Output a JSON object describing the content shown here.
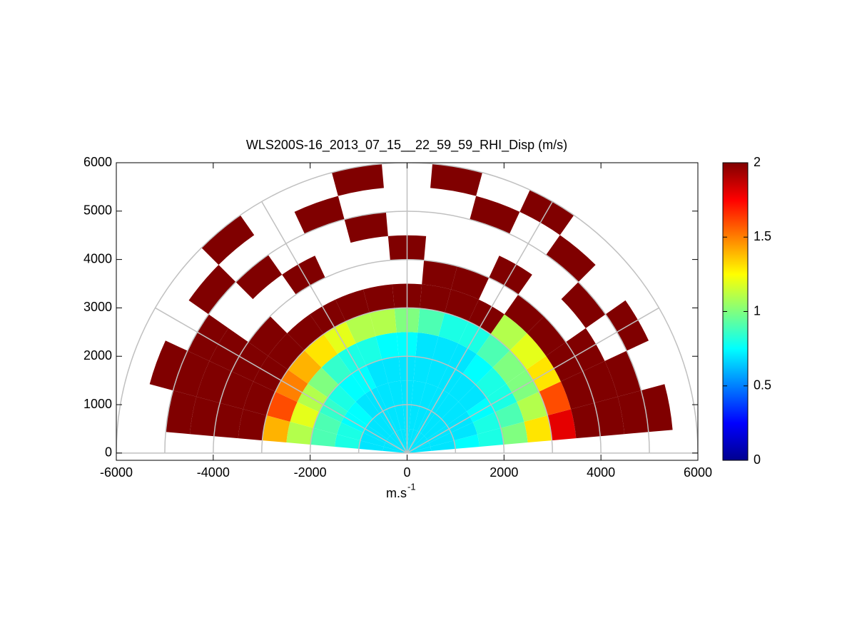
{
  "chart_data": {
    "type": "polar-heatmap",
    "title": "WLS200S-16_2013_07_15__22_59_59_RHI_Disp (m/s)",
    "xlabel": {
      "base": "m.s",
      "sup": "-1"
    },
    "xlim": [
      -6000,
      6000
    ],
    "ylim": [
      -150,
      6000
    ],
    "xticks": [
      -6000,
      -4000,
      -2000,
      0,
      2000,
      4000,
      6000
    ],
    "yticks": [
      0,
      1000,
      2000,
      3000,
      4000,
      5000,
      6000
    ],
    "rgrid": [
      1000,
      2000,
      3000,
      4000,
      5000,
      6000
    ],
    "thetagrid": [
      0,
      30,
      60,
      90,
      120,
      150,
      180
    ],
    "colormap": "jet",
    "clim": [
      0,
      2
    ],
    "cticks": [
      0,
      0.5,
      1,
      1.5,
      2
    ],
    "theta_edges": [
      5,
      15,
      25,
      35,
      45,
      55,
      65,
      75,
      85,
      95,
      105,
      115,
      125,
      135,
      145,
      155,
      165,
      175
    ],
    "r_edges": [
      0,
      500,
      1000,
      1500,
      2000,
      2500,
      3000,
      3500,
      4000,
      4500,
      5000,
      5500,
      6000
    ],
    "values": [
      [
        0.7,
        0.7,
        0.75,
        0.8,
        1.0,
        1.3,
        1.8,
        2,
        2,
        2,
        2,
        null
      ],
      [
        0.7,
        0.7,
        0.7,
        0.8,
        0.9,
        1.1,
        1.6,
        2,
        2,
        2,
        null,
        null
      ],
      [
        0.7,
        0.7,
        0.7,
        0.75,
        0.8,
        1.0,
        1.3,
        2,
        2,
        null,
        2,
        null
      ],
      [
        0.7,
        0.7,
        0.7,
        0.7,
        0.8,
        1.0,
        1.2,
        2,
        null,
        2,
        null,
        null
      ],
      [
        0.7,
        0.7,
        0.7,
        0.7,
        0.75,
        0.9,
        1.1,
        2,
        null,
        null,
        2,
        null
      ],
      [
        0.7,
        0.7,
        0.7,
        0.7,
        0.7,
        0.8,
        2,
        null,
        2,
        null,
        null,
        2
      ],
      [
        0.7,
        0.7,
        0.7,
        0.7,
        0.7,
        0.8,
        2,
        2,
        null,
        null,
        2,
        null
      ],
      [
        0.7,
        0.7,
        0.7,
        0.7,
        0.7,
        0.9,
        2,
        2,
        null,
        null,
        null,
        2
      ],
      [
        0.7,
        0.7,
        0.7,
        0.7,
        0.75,
        1.0,
        2,
        null,
        2,
        null,
        null,
        null
      ],
      [
        0.7,
        0.7,
        0.7,
        0.7,
        0.75,
        1.1,
        2,
        null,
        null,
        2,
        null,
        2
      ],
      [
        0.7,
        0.7,
        0.7,
        0.7,
        0.8,
        1.1,
        2,
        null,
        null,
        null,
        2,
        null
      ],
      [
        0.7,
        0.7,
        0.7,
        0.75,
        0.8,
        1.2,
        2,
        null,
        2,
        null,
        null,
        null
      ],
      [
        0.7,
        0.7,
        0.7,
        0.75,
        0.85,
        1.3,
        2,
        null,
        null,
        2,
        null,
        2
      ],
      [
        0.7,
        0.7,
        0.75,
        0.8,
        1.0,
        1.4,
        2,
        2,
        null,
        null,
        2,
        null
      ],
      [
        0.7,
        0.7,
        0.75,
        0.85,
        1.1,
        1.5,
        2,
        2,
        2,
        2,
        null,
        null
      ],
      [
        0.7,
        0.7,
        0.8,
        0.9,
        1.2,
        1.6,
        2,
        2,
        2,
        2,
        2,
        null
      ],
      [
        0.7,
        0.7,
        0.8,
        0.9,
        1.1,
        1.4,
        2,
        2,
        2,
        2,
        null,
        null
      ]
    ]
  }
}
